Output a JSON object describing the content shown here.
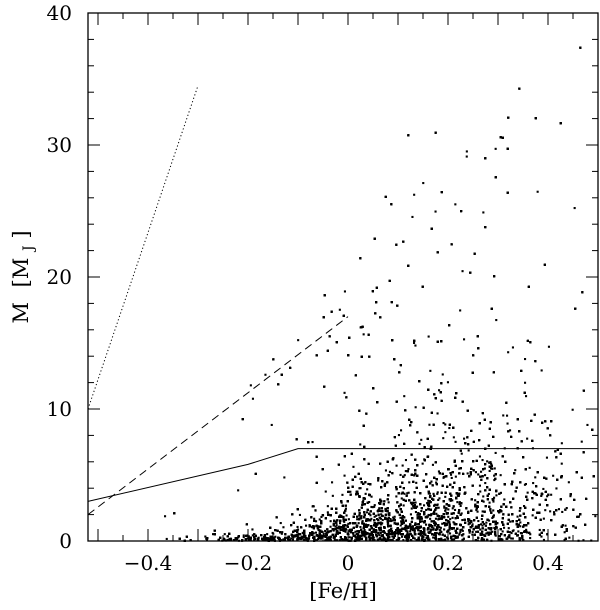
{
  "chart_data": {
    "type": "scatter",
    "xlabel": "[Fe/H]",
    "ylabel_main": "M",
    "ylabel_unit": "[M",
    "ylabel_sub": "J",
    "ylabel_close": "]",
    "xlim": [
      -0.52,
      0.5
    ],
    "ylim": [
      0,
      40
    ],
    "x_ticks": [
      {
        "value": -0.4,
        "label": "−0.4"
      },
      {
        "value": -0.2,
        "label": "−0.2"
      },
      {
        "value": 0.0,
        "label": "0"
      },
      {
        "value": 0.2,
        "label": "0.2"
      },
      {
        "value": 0.4,
        "label": "0.4"
      }
    ],
    "y_ticks": [
      {
        "value": 0,
        "label": "0"
      },
      {
        "value": 10,
        "label": "10"
      },
      {
        "value": 20,
        "label": "20"
      },
      {
        "value": 30,
        "label": "30"
      },
      {
        "value": 40,
        "label": "40"
      }
    ],
    "grid": false,
    "lines": [
      {
        "style": "solid",
        "x": [
          -0.52,
          -0.2,
          -0.1,
          0.5
        ],
        "y": [
          3.0,
          5.8,
          7.0,
          7.0
        ]
      },
      {
        "style": "dashed",
        "x": [
          -0.52,
          0.0
        ],
        "y": [
          2.0,
          17.0
        ]
      },
      {
        "style": "dotted",
        "x": [
          -0.52,
          -0.3
        ],
        "y": [
          10.0,
          34.5
        ]
      }
    ],
    "scatter": {
      "approx_count": 9000,
      "description_of_density": "dense cloud concentrated at M < 5 across [Fe/H] -0.1 to 0.5, thinning toward higher M and lower [Fe/H]",
      "color": "#000000"
    }
  }
}
